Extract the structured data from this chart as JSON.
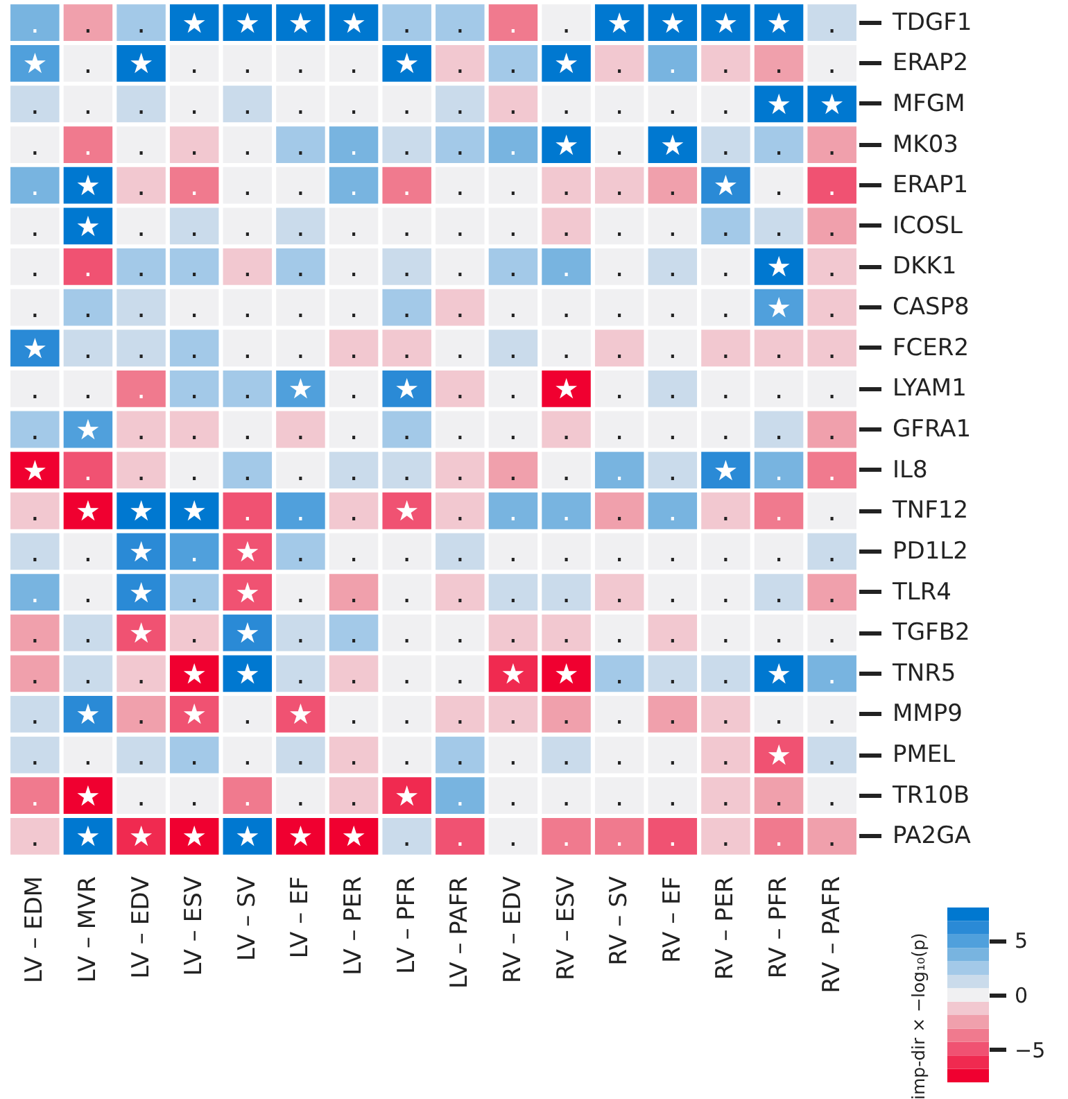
{
  "chart_data": {
    "type": "heatmap",
    "categories": [
      "LV – EDM",
      "LV – MVR",
      "LV – EDV",
      "LV – ESV",
      "LV – SV",
      "LV – EF",
      "LV – PER",
      "LV – PFR",
      "LV – PAFR",
      "RV – EDV",
      "RV – ESV",
      "RV – SV",
      "RV – EF",
      "RV – PER",
      "RV – PFR",
      "RV – PAFR"
    ],
    "y_categories": [
      "TDGF1",
      "ERAP2",
      "MFGM",
      "MK03",
      "ERAP1",
      "ICOSL",
      "DKK1",
      "CASP8",
      "FCER2",
      "LYAM1",
      "GFRA1",
      "IL8",
      "TNF12",
      "PD1L2",
      "TLR4",
      "TGFB2",
      "TNR5",
      "MMP9",
      "PMEL",
      "TR10B",
      "PA2GA"
    ],
    "cells": [
      [
        3.7,
        -2.5,
        2.5,
        7.4,
        7.4,
        7.4,
        7.4,
        2.5,
        2.5,
        -3.7,
        0,
        7.4,
        7.4,
        7.4,
        7.4,
        1.2
      ],
      [
        4.9,
        0,
        7.4,
        0,
        0,
        0,
        0,
        7.4,
        -1.2,
        2.5,
        7.4,
        -1.2,
        3.7,
        -1.2,
        -2.5,
        0
      ],
      [
        1.2,
        0,
        1.2,
        0,
        1.2,
        0,
        0,
        0,
        1.2,
        -1.2,
        0,
        0,
        0,
        0,
        7.4,
        7.4
      ],
      [
        0,
        -3.7,
        0,
        -1.2,
        0,
        2.5,
        3.7,
        1.2,
        2.5,
        3.7,
        7.4,
        0,
        7.4,
        1.2,
        2.5,
        -2.5
      ],
      [
        3.7,
        7.4,
        -1.2,
        -3.7,
        0,
        0,
        3.7,
        -3.7,
        0,
        0,
        -1.2,
        -1.2,
        -2.5,
        6.2,
        0,
        -4.9
      ],
      [
        0,
        7.4,
        0,
        1.2,
        0,
        1.2,
        0,
        0,
        0,
        0,
        -1.2,
        0,
        0,
        2.5,
        1.2,
        -2.5
      ],
      [
        0,
        -4.9,
        2.5,
        2.5,
        -1.2,
        2.5,
        0,
        1.2,
        0,
        2.5,
        3.7,
        0,
        1.2,
        0,
        7.4,
        -1.2
      ],
      [
        0,
        2.5,
        1.2,
        0,
        0,
        0,
        0,
        2.5,
        -1.2,
        0,
        0,
        0,
        0,
        0,
        4.9,
        -1.2
      ],
      [
        6.2,
        1.2,
        1.2,
        2.5,
        0,
        0,
        -1.2,
        -1.2,
        0,
        1.2,
        0,
        -1.2,
        0,
        -1.2,
        -1.2,
        -1.2
      ],
      [
        0,
        0,
        -3.7,
        2.5,
        2.5,
        4.9,
        0,
        6.2,
        -1.2,
        0,
        -7.4,
        0,
        1.2,
        0,
        0,
        0
      ],
      [
        2.5,
        4.9,
        -1.2,
        -1.2,
        0,
        -1.2,
        0,
        2.5,
        0,
        0,
        -1.2,
        0,
        0,
        0,
        1.2,
        -2.5
      ],
      [
        -7.4,
        -4.9,
        -1.2,
        0,
        2.5,
        0,
        1.2,
        1.2,
        -1.2,
        -2.5,
        0,
        3.7,
        1.2,
        6.2,
        3.7,
        -3.7
      ],
      [
        -1.2,
        -7.4,
        7.4,
        7.4,
        -4.9,
        4.9,
        -1.2,
        -4.9,
        -1.2,
        3.7,
        3.7,
        -2.5,
        3.7,
        -1.2,
        -3.7,
        0
      ],
      [
        1.2,
        0,
        6.2,
        4.9,
        -4.9,
        2.5,
        0,
        0,
        1.2,
        0,
        0,
        0,
        0,
        0,
        0,
        1.2
      ],
      [
        3.7,
        0,
        6.2,
        2.5,
        -4.9,
        0,
        -2.5,
        0,
        -1.2,
        1.2,
        1.2,
        -1.2,
        0,
        0,
        1.2,
        -2.5
      ],
      [
        -2.5,
        1.2,
        -4.9,
        -1.2,
        6.2,
        1.2,
        2.5,
        0,
        0,
        -1.2,
        -1.2,
        0,
        -1.2,
        0,
        0,
        0
      ],
      [
        -2.5,
        1.2,
        -1.2,
        -7.4,
        7.4,
        1.2,
        -1.2,
        0,
        0,
        -6.2,
        -7.4,
        2.5,
        1.2,
        1.2,
        7.4,
        3.7
      ],
      [
        1.2,
        6.2,
        -2.5,
        -4.9,
        0,
        -4.9,
        0,
        0,
        -1.2,
        -1.2,
        -2.5,
        0,
        -2.5,
        -1.2,
        0,
        0
      ],
      [
        1.2,
        0,
        1.2,
        2.5,
        0,
        1.2,
        -1.2,
        0,
        2.5,
        0,
        1.2,
        0,
        0,
        -1.2,
        -4.9,
        1.2
      ],
      [
        -3.7,
        -7.4,
        0,
        0,
        -3.7,
        0,
        -1.2,
        -6.2,
        3.7,
        0,
        0,
        0,
        0,
        -1.2,
        -2.5,
        0
      ],
      [
        -1.2,
        7.4,
        -6.2,
        -7.4,
        7.4,
        -7.4,
        -7.4,
        1.2,
        -4.9,
        0,
        -3.7,
        -3.7,
        -4.9,
        -1.2,
        -3.7,
        -2.5
      ]
    ],
    "cell_labels": [
      [
        ".",
        ".",
        ".",
        "★",
        "★",
        "★",
        "★",
        ".",
        ".",
        ".",
        ".",
        "★",
        "★",
        "★",
        "★",
        "."
      ],
      [
        "★",
        ".",
        "★",
        ".",
        ".",
        ".",
        ".",
        "★",
        ".",
        ".",
        "★",
        ".",
        ".",
        ".",
        ".",
        "."
      ],
      [
        ".",
        ".",
        ".",
        ".",
        ".",
        ".",
        ".",
        ".",
        ".",
        ".",
        ".",
        ".",
        ".",
        ".",
        "★",
        "★"
      ],
      [
        ".",
        ".",
        ".",
        ".",
        ".",
        ".",
        ".",
        ".",
        ".",
        ".",
        "★",
        ".",
        "★",
        ".",
        ".",
        "."
      ],
      [
        ".",
        "★",
        ".",
        ".",
        ".",
        ".",
        ".",
        ".",
        ".",
        ".",
        ".",
        ".",
        ".",
        "★",
        ".",
        "."
      ],
      [
        ".",
        "★",
        ".",
        ".",
        ".",
        ".",
        ".",
        ".",
        ".",
        ".",
        ".",
        ".",
        ".",
        ".",
        ".",
        "."
      ],
      [
        ".",
        ".",
        ".",
        ".",
        ".",
        ".",
        ".",
        ".",
        ".",
        ".",
        ".",
        ".",
        ".",
        ".",
        "★",
        "."
      ],
      [
        ".",
        ".",
        ".",
        ".",
        ".",
        ".",
        ".",
        ".",
        ".",
        ".",
        ".",
        ".",
        ".",
        ".",
        "★",
        "."
      ],
      [
        "★",
        ".",
        ".",
        ".",
        ".",
        ".",
        ".",
        ".",
        ".",
        ".",
        ".",
        ".",
        ".",
        ".",
        ".",
        "."
      ],
      [
        ".",
        ".",
        ".",
        ".",
        ".",
        "★",
        ".",
        "★",
        ".",
        ".",
        "★",
        ".",
        ".",
        ".",
        ".",
        "."
      ],
      [
        ".",
        "★",
        ".",
        ".",
        ".",
        ".",
        ".",
        ".",
        ".",
        ".",
        ".",
        ".",
        ".",
        ".",
        ".",
        "."
      ],
      [
        "★",
        ".",
        ".",
        ".",
        ".",
        ".",
        ".",
        ".",
        ".",
        ".",
        ".",
        ".",
        ".",
        "★",
        ".",
        "."
      ],
      [
        ".",
        "★",
        "★",
        "★",
        ".",
        ".",
        ".",
        "★",
        ".",
        ".",
        ".",
        ".",
        ".",
        ".",
        ".",
        "."
      ],
      [
        ".",
        ".",
        "★",
        ".",
        "★",
        ".",
        ".",
        ".",
        ".",
        ".",
        ".",
        ".",
        ".",
        ".",
        ".",
        "."
      ],
      [
        ".",
        ".",
        "★",
        ".",
        "★",
        ".",
        ".",
        ".",
        ".",
        ".",
        ".",
        ".",
        ".",
        ".",
        ".",
        "."
      ],
      [
        ".",
        ".",
        "★",
        ".",
        "★",
        ".",
        ".",
        ".",
        ".",
        ".",
        ".",
        ".",
        ".",
        ".",
        ".",
        "."
      ],
      [
        ".",
        ".",
        ".",
        "★",
        "★",
        ".",
        ".",
        ".",
        ".",
        "★",
        "★",
        ".",
        ".",
        ".",
        "★",
        "."
      ],
      [
        ".",
        "★",
        ".",
        "★",
        ".",
        "★",
        ".",
        ".",
        ".",
        ".",
        ".",
        ".",
        ".",
        ".",
        ".",
        "."
      ],
      [
        ".",
        ".",
        ".",
        ".",
        ".",
        ".",
        ".",
        ".",
        ".",
        ".",
        ".",
        ".",
        ".",
        ".",
        "★",
        "."
      ],
      [
        ".",
        "★",
        ".",
        ".",
        ".",
        ".",
        ".",
        "★",
        ".",
        ".",
        ".",
        ".",
        ".",
        ".",
        ".",
        "."
      ],
      [
        ".",
        "★",
        "★",
        "★",
        "★",
        "★",
        "★",
        ".",
        ".",
        ".",
        ".",
        ".",
        ".",
        ".",
        ".",
        "."
      ]
    ],
    "clabel": "imp-dir × −log₁₀(p)",
    "clim": [
      -8,
      8
    ],
    "cticks": [
      5,
      0,
      -5
    ]
  }
}
